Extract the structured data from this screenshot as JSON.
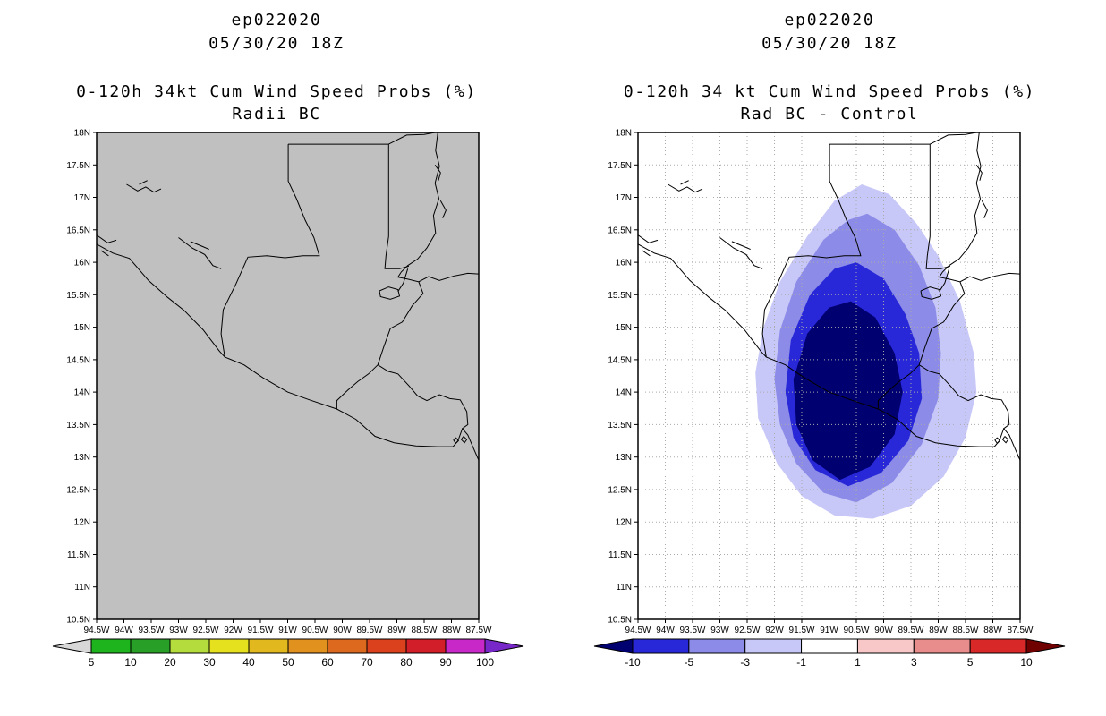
{
  "chart_data": [
    {
      "type": "heatmap",
      "subtype": "filled-contour-map",
      "panel": "left",
      "title_lines": [
        "ep022020",
        "05/30/20 18Z"
      ],
      "subtitle_lines": [
        "0-120h 34kt Cum Wind Speed Probs (%)",
        "Radii BC"
      ],
      "lon_range_deg_w": [
        94.5,
        87.5
      ],
      "lat_range_deg_n": [
        10.5,
        18
      ],
      "x_tick_labels": [
        "94.5W",
        "94W",
        "93.5W",
        "93W",
        "92.5W",
        "92W",
        "91.5W",
        "91W",
        "90.5W",
        "90W",
        "89.5W",
        "89W",
        "88.5W",
        "88W",
        "87.5W"
      ],
      "y_tick_labels": [
        "18N",
        "17.5N",
        "17N",
        "16.5N",
        "16N",
        "15.5N",
        "15N",
        "14.5N",
        "14N",
        "13.5N",
        "13N",
        "12.5N",
        "12N",
        "11.5N",
        "11N",
        "10.5N"
      ],
      "grid_visible": false,
      "grid_color": "#aaaaaa",
      "background_color": "#c0c0c0",
      "field_note": "no shaded contours drawn (all probabilities below lowest level 5%)",
      "contours": [],
      "colorbar": {
        "labels": [
          "5",
          "10",
          "20",
          "30",
          "40",
          "50",
          "60",
          "70",
          "80",
          "90",
          "100"
        ],
        "segment_colors": [
          "#1eb41e",
          "#28a028",
          "#b4dc3c",
          "#e6e11e",
          "#e1b91e",
          "#e1911e",
          "#dc691e",
          "#dc411e",
          "#d21e28",
          "#c828c8"
        ],
        "below_arrow_color": "#d7d7d7",
        "above_arrow_color": "#7828c8"
      }
    },
    {
      "type": "heatmap",
      "subtype": "filled-contour-map",
      "panel": "right",
      "title_lines": [
        "ep022020",
        "05/30/20 18Z"
      ],
      "subtitle_lines": [
        "0-120h 34 kt Cum Wind Speed Probs (%)",
        "Rad BC - Control"
      ],
      "lon_range_deg_w": [
        94.5,
        87.5
      ],
      "lat_range_deg_n": [
        10.5,
        18
      ],
      "x_tick_labels": [
        "94.5W",
        "94W",
        "93.5W",
        "93W",
        "92.5W",
        "92W",
        "91.5W",
        "91W",
        "90.5W",
        "90W",
        "89.5W",
        "89W",
        "88.5W",
        "88W",
        "87.5W"
      ],
      "y_tick_labels": [
        "18N",
        "17.5N",
        "17N",
        "16.5N",
        "16N",
        "15.5N",
        "15N",
        "14.5N",
        "14N",
        "13.5N",
        "13N",
        "12.5N",
        "12N",
        "11.5N",
        "11N",
        "10.5N"
      ],
      "grid_visible": true,
      "grid_color": "#aaaaaa",
      "background_color": "#ffffff",
      "field_note": "negative difference (Rad BC minus Control) centered near 90.7W 14N",
      "contours": [
        {
          "level": -1,
          "color": "#c8c8f8",
          "polygon_lon_lat": [
            [
              90.4,
              17.2
            ],
            [
              89.9,
              17.05
            ],
            [
              89.4,
              16.6
            ],
            [
              89.0,
              16.1
            ],
            [
              88.6,
              15.4
            ],
            [
              88.35,
              14.6
            ],
            [
              88.3,
              14.0
            ],
            [
              88.5,
              13.3
            ],
            [
              88.9,
              12.7
            ],
            [
              89.5,
              12.25
            ],
            [
              90.2,
              12.05
            ],
            [
              90.9,
              12.1
            ],
            [
              91.5,
              12.4
            ],
            [
              91.95,
              12.9
            ],
            [
              92.3,
              13.6
            ],
            [
              92.35,
              14.3
            ],
            [
              92.2,
              15.0
            ],
            [
              91.9,
              15.7
            ],
            [
              91.4,
              16.4
            ],
            [
              90.9,
              16.95
            ]
          ]
        },
        {
          "level": -3,
          "color": "#8c8ce8",
          "polygon_lon_lat": [
            [
              90.3,
              16.75
            ],
            [
              89.8,
              16.5
            ],
            [
              89.35,
              15.95
            ],
            [
              89.05,
              15.3
            ],
            [
              88.95,
              14.6
            ],
            [
              89.0,
              13.9
            ],
            [
              89.3,
              13.2
            ],
            [
              89.85,
              12.6
            ],
            [
              90.5,
              12.3
            ],
            [
              91.1,
              12.45
            ],
            [
              91.6,
              12.9
            ],
            [
              91.9,
              13.5
            ],
            [
              92.0,
              14.2
            ],
            [
              91.9,
              14.95
            ],
            [
              91.6,
              15.7
            ],
            [
              91.1,
              16.35
            ],
            [
              90.65,
              16.65
            ]
          ]
        },
        {
          "level": -5,
          "color": "#2828d8",
          "polygon_lon_lat": [
            [
              90.5,
              16.0
            ],
            [
              90.0,
              15.75
            ],
            [
              89.6,
              15.2
            ],
            [
              89.35,
              14.6
            ],
            [
              89.3,
              13.9
            ],
            [
              89.55,
              13.25
            ],
            [
              90.05,
              12.75
            ],
            [
              90.65,
              12.55
            ],
            [
              91.25,
              12.8
            ],
            [
              91.65,
              13.3
            ],
            [
              91.8,
              14.0
            ],
            [
              91.7,
              14.8
            ],
            [
              91.35,
              15.5
            ],
            [
              90.9,
              15.9
            ]
          ]
        },
        {
          "level": -10,
          "color": "#000070",
          "polygon_lon_lat": [
            [
              90.6,
              15.4
            ],
            [
              90.15,
              15.15
            ],
            [
              89.8,
              14.6
            ],
            [
              89.65,
              14.0
            ],
            [
              89.8,
              13.35
            ],
            [
              90.25,
              12.85
            ],
            [
              90.8,
              12.65
            ],
            [
              91.3,
              12.95
            ],
            [
              91.6,
              13.5
            ],
            [
              91.65,
              14.2
            ],
            [
              91.4,
              14.9
            ],
            [
              91.0,
              15.3
            ]
          ]
        }
      ],
      "colorbar": {
        "labels": [
          "-10",
          "-5",
          "-3",
          "-1",
          "1",
          "3",
          "5",
          "10"
        ],
        "segment_colors": [
          "#2828d8",
          "#8c8ce8",
          "#c8c8f8",
          "#ffffff",
          "#f8c8c8",
          "#e88c8c",
          "#d82828"
        ],
        "below_arrow_color": "#000070",
        "above_arrow_color": "#700000"
      }
    }
  ]
}
